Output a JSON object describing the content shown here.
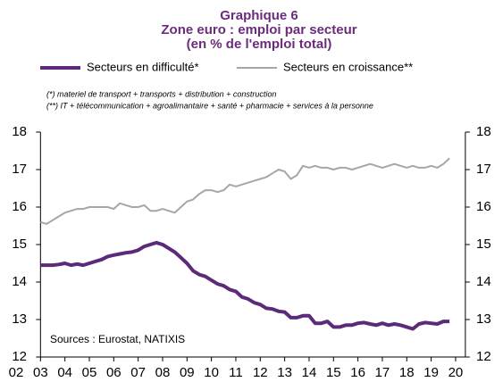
{
  "chart_data": {
    "type": "line",
    "title": [
      "Graphique 6",
      "Zone euro : emploi par secteur",
      "(en % de l'emploi total)"
    ],
    "notes": [
      "(*) materiel de transport + transports + distribution + construction",
      "(**) IT + télécommunication + agroalimantaire + santé + pharmacie + services à la personne"
    ],
    "source": "Sources : Eurostat, NATIXIS",
    "x": [
      2003,
      2003.25,
      2003.5,
      2003.75,
      2004,
      2004.25,
      2004.5,
      2004.75,
      2005,
      2005.25,
      2005.5,
      2005.75,
      2006,
      2006.25,
      2006.5,
      2006.75,
      2007,
      2007.25,
      2007.5,
      2007.75,
      2008,
      2008.25,
      2008.5,
      2008.75,
      2009,
      2009.25,
      2009.5,
      2009.75,
      2010,
      2010.25,
      2010.5,
      2010.75,
      2011,
      2011.25,
      2011.5,
      2011.75,
      2012,
      2012.25,
      2012.5,
      2012.75,
      2013,
      2013.25,
      2013.5,
      2013.75,
      2014,
      2014.25,
      2014.5,
      2014.75,
      2015,
      2015.25,
      2015.5,
      2015.75,
      2016,
      2016.25,
      2016.5,
      2016.75,
      2017,
      2017.25,
      2017.5,
      2017.75,
      2018,
      2018.25,
      2018.5,
      2018.75,
      2019,
      2019.25,
      2019.5,
      2019.75
    ],
    "series": [
      {
        "name": "Secteurs en difficulté*",
        "color": "#5b2a78",
        "width": 4,
        "values": [
          14.45,
          14.45,
          14.45,
          14.47,
          14.5,
          14.45,
          14.48,
          14.45,
          14.5,
          14.55,
          14.6,
          14.68,
          14.72,
          14.75,
          14.78,
          14.8,
          14.85,
          14.95,
          15.0,
          15.05,
          15.0,
          14.9,
          14.8,
          14.65,
          14.5,
          14.3,
          14.2,
          14.15,
          14.05,
          13.95,
          13.9,
          13.8,
          13.75,
          13.6,
          13.55,
          13.45,
          13.4,
          13.3,
          13.28,
          13.22,
          13.2,
          13.05,
          13.05,
          13.1,
          13.1,
          12.9,
          12.9,
          12.95,
          12.8,
          12.8,
          12.85,
          12.85,
          12.9,
          12.92,
          12.88,
          12.85,
          12.9,
          12.85,
          12.88,
          12.85,
          12.8,
          12.75,
          12.88,
          12.92,
          12.9,
          12.88,
          12.95,
          12.95
        ]
      },
      {
        "name": "Secteurs en croissance**",
        "color": "#a6a6a6",
        "width": 2,
        "values": [
          15.6,
          15.55,
          15.65,
          15.75,
          15.85,
          15.9,
          15.95,
          15.95,
          16.0,
          16.0,
          16.0,
          16.0,
          15.95,
          16.1,
          16.05,
          16.0,
          16.0,
          16.05,
          15.9,
          15.9,
          15.95,
          15.9,
          15.85,
          16.0,
          16.15,
          16.2,
          16.35,
          16.45,
          16.45,
          16.4,
          16.45,
          16.6,
          16.55,
          16.6,
          16.65,
          16.7,
          16.75,
          16.8,
          16.9,
          17.0,
          16.95,
          16.75,
          16.85,
          17.1,
          17.05,
          17.1,
          17.05,
          17.05,
          17.0,
          17.05,
          17.05,
          17.0,
          17.05,
          17.1,
          17.15,
          17.1,
          17.05,
          17.1,
          17.15,
          17.1,
          17.05,
          17.1,
          17.05,
          17.05,
          17.1,
          17.05,
          17.15,
          17.3
        ]
      }
    ],
    "xlim": [
      2003,
      2020.4
    ],
    "xticks": [
      {
        "value": 2002,
        "label": "02"
      },
      {
        "value": 2003,
        "label": "03"
      },
      {
        "value": 2004,
        "label": "04"
      },
      {
        "value": 2005,
        "label": "05"
      },
      {
        "value": 2006,
        "label": "06"
      },
      {
        "value": 2007,
        "label": "07"
      },
      {
        "value": 2008,
        "label": "08"
      },
      {
        "value": 2009,
        "label": "09"
      },
      {
        "value": 2010,
        "label": "10"
      },
      {
        "value": 2011,
        "label": "11"
      },
      {
        "value": 2012,
        "label": "12"
      },
      {
        "value": 2013,
        "label": "13"
      },
      {
        "value": 2014,
        "label": "14"
      },
      {
        "value": 2015,
        "label": "15"
      },
      {
        "value": 2016,
        "label": "16"
      },
      {
        "value": 2017,
        "label": "17"
      },
      {
        "value": 2018,
        "label": "18"
      },
      {
        "value": 2019,
        "label": "19"
      },
      {
        "value": 2020,
        "label": "20"
      }
    ],
    "ylim": [
      12,
      18
    ],
    "yticks": [
      12,
      13,
      14,
      15,
      16,
      17,
      18
    ],
    "y2lim": [
      12,
      18
    ],
    "y2ticks": [
      12,
      13,
      14,
      15,
      16,
      17,
      18
    ]
  }
}
